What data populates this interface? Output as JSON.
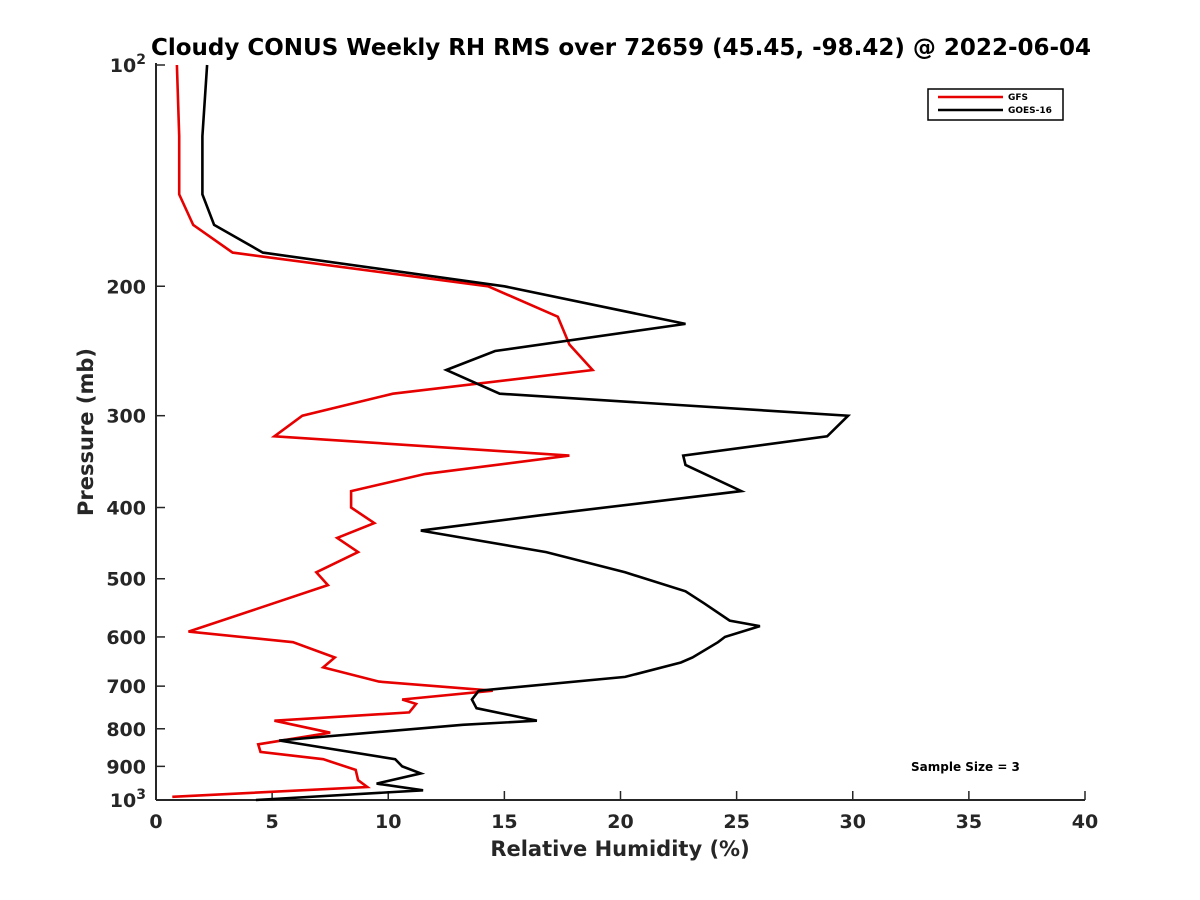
{
  "chart_data": {
    "type": "line",
    "title": "Cloudy CONUS Weekly RH RMS over 72659 (45.45, -98.42) @ 2022-06-04",
    "xlabel": "Relative Humidity (%)",
    "ylabel": "Pressure (mb)",
    "xlim": [
      0,
      40
    ],
    "ylim": [
      100,
      1000
    ],
    "yscale": "log",
    "y_reversed": true,
    "x_ticks": [
      "0",
      "5",
      "10",
      "15",
      "20",
      "25",
      "30",
      "35",
      "40"
    ],
    "y_ticks": [
      {
        "value": 100,
        "base": "10",
        "exp": "2"
      },
      {
        "value": 200,
        "label": "200"
      },
      {
        "value": 300,
        "label": "300"
      },
      {
        "value": 400,
        "label": "400"
      },
      {
        "value": 500,
        "label": "500"
      },
      {
        "value": 600,
        "label": "600"
      },
      {
        "value": 700,
        "label": "700"
      },
      {
        "value": 800,
        "label": "800"
      },
      {
        "value": 900,
        "label": "900"
      },
      {
        "value": 1000,
        "base": "10",
        "exp": "3"
      }
    ],
    "grid": false,
    "legend_position": "top-right",
    "annotation": "Sample Size = 3",
    "series": [
      {
        "name": "GFS",
        "color": "#e60000",
        "points": [
          [
            0.9,
            100
          ],
          [
            1.0,
            125
          ],
          [
            1.0,
            150
          ],
          [
            1.6,
            165
          ],
          [
            3.3,
            180
          ],
          [
            14.3,
            200
          ],
          [
            17.3,
            220
          ],
          [
            17.8,
            240
          ],
          [
            18.8,
            260
          ],
          [
            10.2,
            280
          ],
          [
            6.3,
            300
          ],
          [
            5.1,
            320
          ],
          [
            17.8,
            340
          ],
          [
            11.6,
            360
          ],
          [
            8.4,
            380
          ],
          [
            8.4,
            400
          ],
          [
            9.4,
            420
          ],
          [
            7.8,
            440
          ],
          [
            8.7,
            460
          ],
          [
            6.9,
            490
          ],
          [
            7.4,
            510
          ],
          [
            4.3,
            550
          ],
          [
            1.4,
            590
          ],
          [
            5.9,
            610
          ],
          [
            7.7,
            640
          ],
          [
            7.2,
            660
          ],
          [
            9.6,
            690
          ],
          [
            14.5,
            710
          ],
          [
            10.6,
            730
          ],
          [
            11.2,
            740
          ],
          [
            10.9,
            760
          ],
          [
            5.1,
            780
          ],
          [
            7.5,
            810
          ],
          [
            4.4,
            840
          ],
          [
            4.5,
            860
          ],
          [
            7.2,
            880
          ],
          [
            8.6,
            910
          ],
          [
            8.7,
            940
          ],
          [
            9.1,
            960
          ],
          [
            0.7,
            990
          ]
        ]
      },
      {
        "name": "GOES-16",
        "color": "#000000",
        "points": [
          [
            2.2,
            100
          ],
          [
            2.0,
            125
          ],
          [
            2.0,
            150
          ],
          [
            2.5,
            165
          ],
          [
            4.6,
            180
          ],
          [
            15.0,
            200
          ],
          [
            22.8,
            225
          ],
          [
            14.6,
            245
          ],
          [
            12.5,
            260
          ],
          [
            14.8,
            280
          ],
          [
            29.8,
            300
          ],
          [
            28.9,
            320
          ],
          [
            22.7,
            340
          ],
          [
            22.8,
            350
          ],
          [
            25.2,
            380
          ],
          [
            16.5,
            410
          ],
          [
            11.4,
            430
          ],
          [
            16.8,
            460
          ],
          [
            20.2,
            490
          ],
          [
            22.8,
            520
          ],
          [
            23.6,
            540
          ],
          [
            24.7,
            570
          ],
          [
            26.0,
            580
          ],
          [
            24.5,
            600
          ],
          [
            24.2,
            610
          ],
          [
            23.1,
            640
          ],
          [
            22.6,
            650
          ],
          [
            20.2,
            680
          ],
          [
            13.9,
            710
          ],
          [
            13.6,
            730
          ],
          [
            13.8,
            750
          ],
          [
            16.4,
            780
          ],
          [
            13.2,
            790
          ],
          [
            5.3,
            830
          ],
          [
            10.3,
            880
          ],
          [
            10.6,
            900
          ],
          [
            11.4,
            920
          ],
          [
            9.5,
            950
          ],
          [
            11.5,
            970
          ],
          [
            4.3,
            1000
          ]
        ]
      }
    ]
  }
}
